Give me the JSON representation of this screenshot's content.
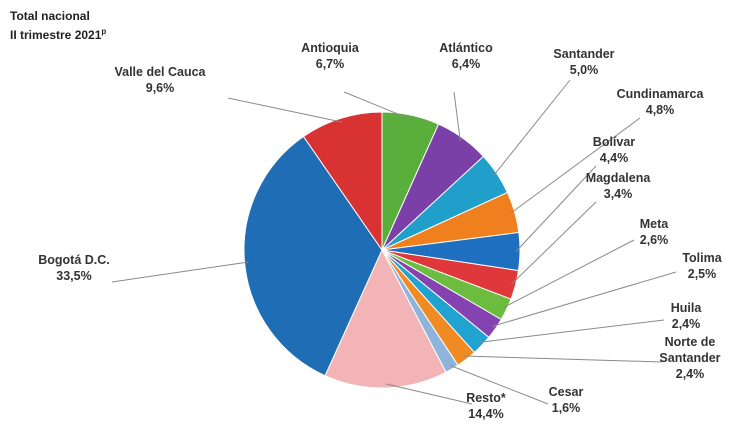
{
  "title": "Total nacional",
  "subtitle": "II trimestre 2021",
  "subtitle_sup": "p",
  "chart_data": {
    "type": "pie",
    "slices": [
      {
        "name": "Antioquia",
        "label": "Antioquia",
        "value_label": "6,7%",
        "value": 6.7,
        "color": "#5aae3c"
      },
      {
        "name": "Atlántico",
        "label": "Atlántico",
        "value_label": "6,4%",
        "value": 6.4,
        "color": "#7b3fa8"
      },
      {
        "name": "Santander",
        "label": "Santander",
        "value_label": "5,0%",
        "value": 5.0,
        "color": "#1f9fc9"
      },
      {
        "name": "Cundinamarca",
        "label": "Cundinamarca",
        "value_label": "4,8%",
        "value": 4.8,
        "color": "#f07f1e"
      },
      {
        "name": "Bolívar",
        "label": "Bolívar",
        "value_label": "4,4%",
        "value": 4.4,
        "color": "#1f6fc0"
      },
      {
        "name": "Magdalena",
        "label": "Magdalena",
        "value_label": "3,4%",
        "value": 3.4,
        "color": "#e0383a"
      },
      {
        "name": "Meta",
        "label": "Meta",
        "value_label": "2,6%",
        "value": 2.6,
        "color": "#6cbd3f"
      },
      {
        "name": "Tolima",
        "label": "Tolima",
        "value_label": "2,5%",
        "value": 2.5,
        "color": "#8443b0"
      },
      {
        "name": "Huila",
        "label": "Huila",
        "value_label": "2,4%",
        "value": 2.4,
        "color": "#21a3d1"
      },
      {
        "name": "Norte de Santander",
        "label": "Norte de Santander",
        "value_label": "2,4%",
        "value": 2.4,
        "color": "#f08a22"
      },
      {
        "name": "Cesar",
        "label": "Cesar",
        "value_label": "1,6%",
        "value": 1.6,
        "color": "#8fb4dc"
      },
      {
        "name": "Resto",
        "label": "Resto*",
        "value_label": "14,4%",
        "value": 14.4,
        "color": "#f2b4b6"
      },
      {
        "name": "Bogotá D.C.",
        "label": "Bogotá D.C.",
        "value_label": "33,5%",
        "value": 33.5,
        "color": "#1f6db5"
      },
      {
        "name": "Valle del Cauca",
        "label": "Valle del Cauca",
        "value_label": "9,6%",
        "value": 9.6,
        "color": "#d93233"
      }
    ]
  }
}
